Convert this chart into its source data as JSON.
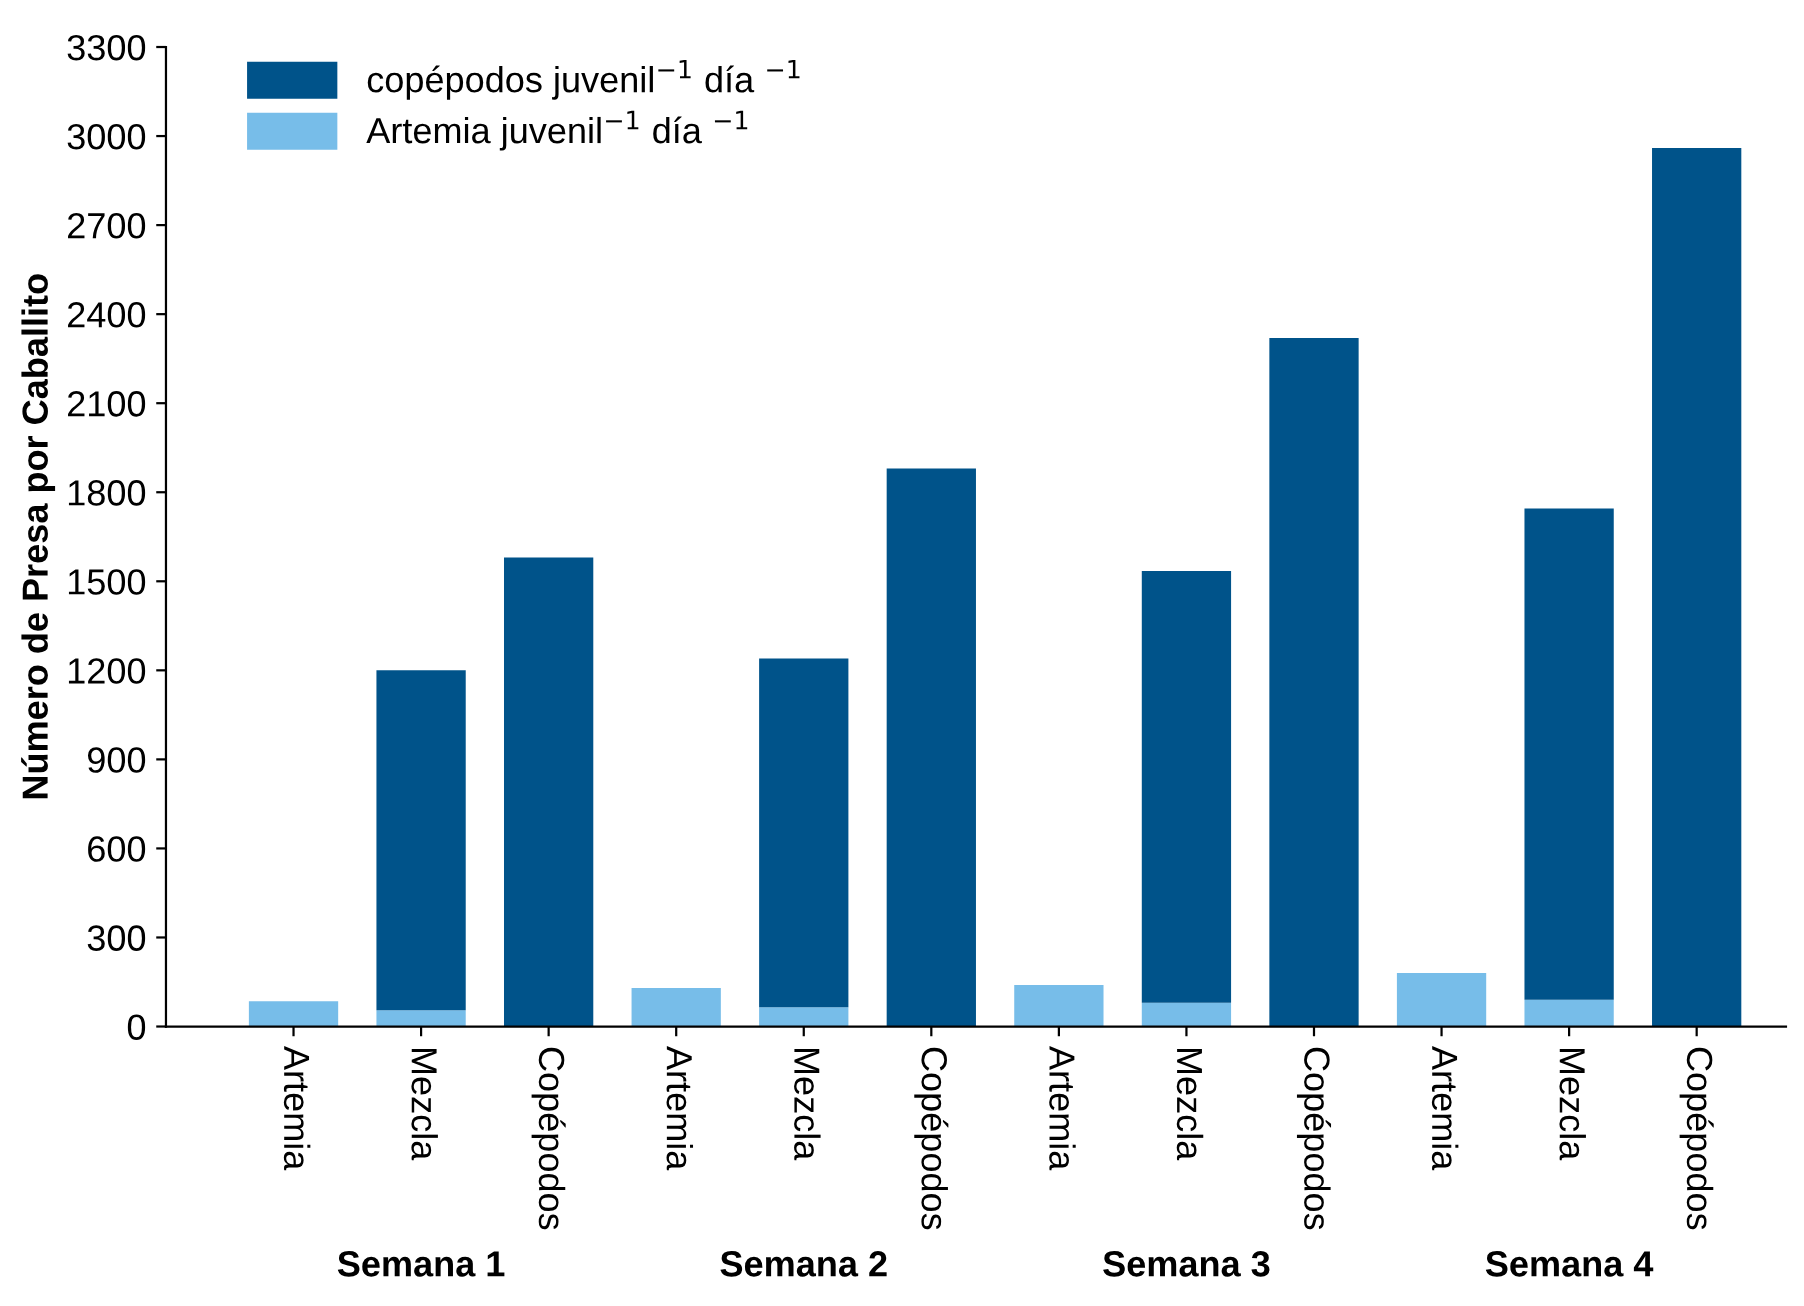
{
  "chart_data": {
    "type": "bar",
    "stacked": true,
    "ylabel": "Número de Presa por Caballito",
    "categories": [
      "Artemia",
      "Mezcla",
      "Copépodos",
      "Artemia",
      "Mezcla",
      "Copépodos",
      "Artemia",
      "Mezcla",
      "Copépodos",
      "Artemia",
      "Mezcla",
      "Copépodos"
    ],
    "series": [
      {
        "name": "Artemia juvenil$^{−1}$ día $^{−1}$",
        "color": "#77bde9",
        "values": [
          85,
          55,
          0,
          130,
          65,
          0,
          140,
          80,
          0,
          180,
          90,
          0
        ]
      },
      {
        "name": "copépodos juvenil$^{−1}$ día $^{−1}$",
        "color": "#00538a",
        "values": [
          0,
          1145,
          1580,
          0,
          1175,
          1880,
          0,
          1455,
          2320,
          0,
          1655,
          2960
        ]
      }
    ],
    "ylim": [
      0,
      3300
    ],
    "yticks": [
      0,
      300,
      600,
      900,
      1200,
      1500,
      1800,
      2100,
      2400,
      2700,
      3000,
      3300
    ],
    "grid": false,
    "legend": "top left",
    "annotations": [
      "Semana 1",
      "Semana 2",
      "Semana 3",
      "Semana 4"
    ]
  }
}
